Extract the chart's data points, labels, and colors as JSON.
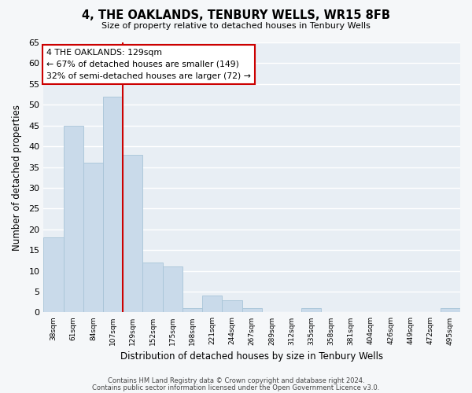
{
  "title": "4, THE OAKLANDS, TENBURY WELLS, WR15 8FB",
  "subtitle": "Size of property relative to detached houses in Tenbury Wells",
  "xlabel": "Distribution of detached houses by size in Tenbury Wells",
  "ylabel": "Number of detached properties",
  "bar_labels": [
    "38sqm",
    "61sqm",
    "84sqm",
    "107sqm",
    "129sqm",
    "152sqm",
    "175sqm",
    "198sqm",
    "221sqm",
    "244sqm",
    "267sqm",
    "289sqm",
    "312sqm",
    "335sqm",
    "358sqm",
    "381sqm",
    "404sqm",
    "426sqm",
    "449sqm",
    "472sqm",
    "495sqm"
  ],
  "bar_values": [
    18,
    45,
    36,
    52,
    38,
    12,
    11,
    1,
    4,
    3,
    1,
    0,
    0,
    1,
    0,
    0,
    0,
    0,
    0,
    0,
    1
  ],
  "bar_color": "#c9daea",
  "bar_edge_color": "#a8c4d8",
  "annotation_title": "4 THE OAKLANDS: 129sqm",
  "annotation_line1": "← 67% of detached houses are smaller (149)",
  "annotation_line2": "32% of semi-detached houses are larger (72) →",
  "annotation_box_color": "#ffffff",
  "annotation_box_edge_color": "#cc0000",
  "vline_color": "#cc0000",
  "vline_x_index": 3.5,
  "ylim": [
    0,
    65
  ],
  "yticks": [
    0,
    5,
    10,
    15,
    20,
    25,
    30,
    35,
    40,
    45,
    50,
    55,
    60,
    65
  ],
  "footer_line1": "Contains HM Land Registry data © Crown copyright and database right 2024.",
  "footer_line2": "Contains public sector information licensed under the Open Government Licence v3.0.",
  "plot_bg_color": "#e8eef4",
  "fig_bg_color": "#f5f7f9",
  "grid_color": "#ffffff"
}
